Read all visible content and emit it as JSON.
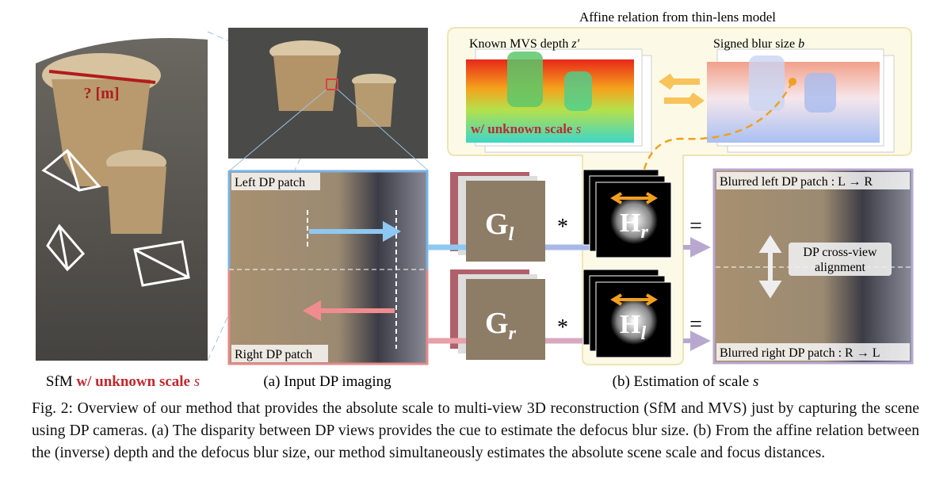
{
  "figure": {
    "title": "Affine relation from thin-lens model",
    "sfm": {
      "measure_label": "? [m]",
      "caption_prefix": "SfM",
      "caption_highlight": "w/ unknown scale",
      "caption_symbol": "s"
    },
    "panel_a": {
      "left_patch_label": "Left DP patch",
      "right_patch_label": "Right DP patch",
      "caption": "(a) Input DP imaging"
    },
    "panel_b": {
      "depth_label": "Known MVS depth",
      "depth_symbol": "z′",
      "blur_label": "Signed blur size",
      "blur_symbol": "b",
      "scale_label": "w/ unknown scale",
      "scale_symbol": "s",
      "kernel_g_left": {
        "base": "G",
        "sub": "l"
      },
      "kernel_g_right": {
        "base": "G",
        "sub": "r"
      },
      "kernel_h_right": {
        "base": "H",
        "sub": "r"
      },
      "kernel_h_left": {
        "base": "H",
        "sub": "l"
      },
      "convolve": "*",
      "equals": "=",
      "blurred_left_label": "Blurred left DP patch : L → R",
      "blurred_right_label": "Blurred right DP patch : R → L",
      "alignment_label_1": "DP cross-view",
      "alignment_label_2": "alignment",
      "caption": "(b) Estimation of scale",
      "caption_symbol": "s"
    }
  },
  "caption": {
    "label": "Fig. 2:",
    "text": "Overview of our method that provides the absolute scale to multi-view 3D reconstruction (SfM and MVS) just by capturing the scene using DP cameras. (a) The disparity between DP views provides the cue to estimate the defocus blur size. (b) From the affine relation between the (inverse) depth and the defocus blur size, our method simultaneously estimates the absolute scene scale and focus distances."
  }
}
